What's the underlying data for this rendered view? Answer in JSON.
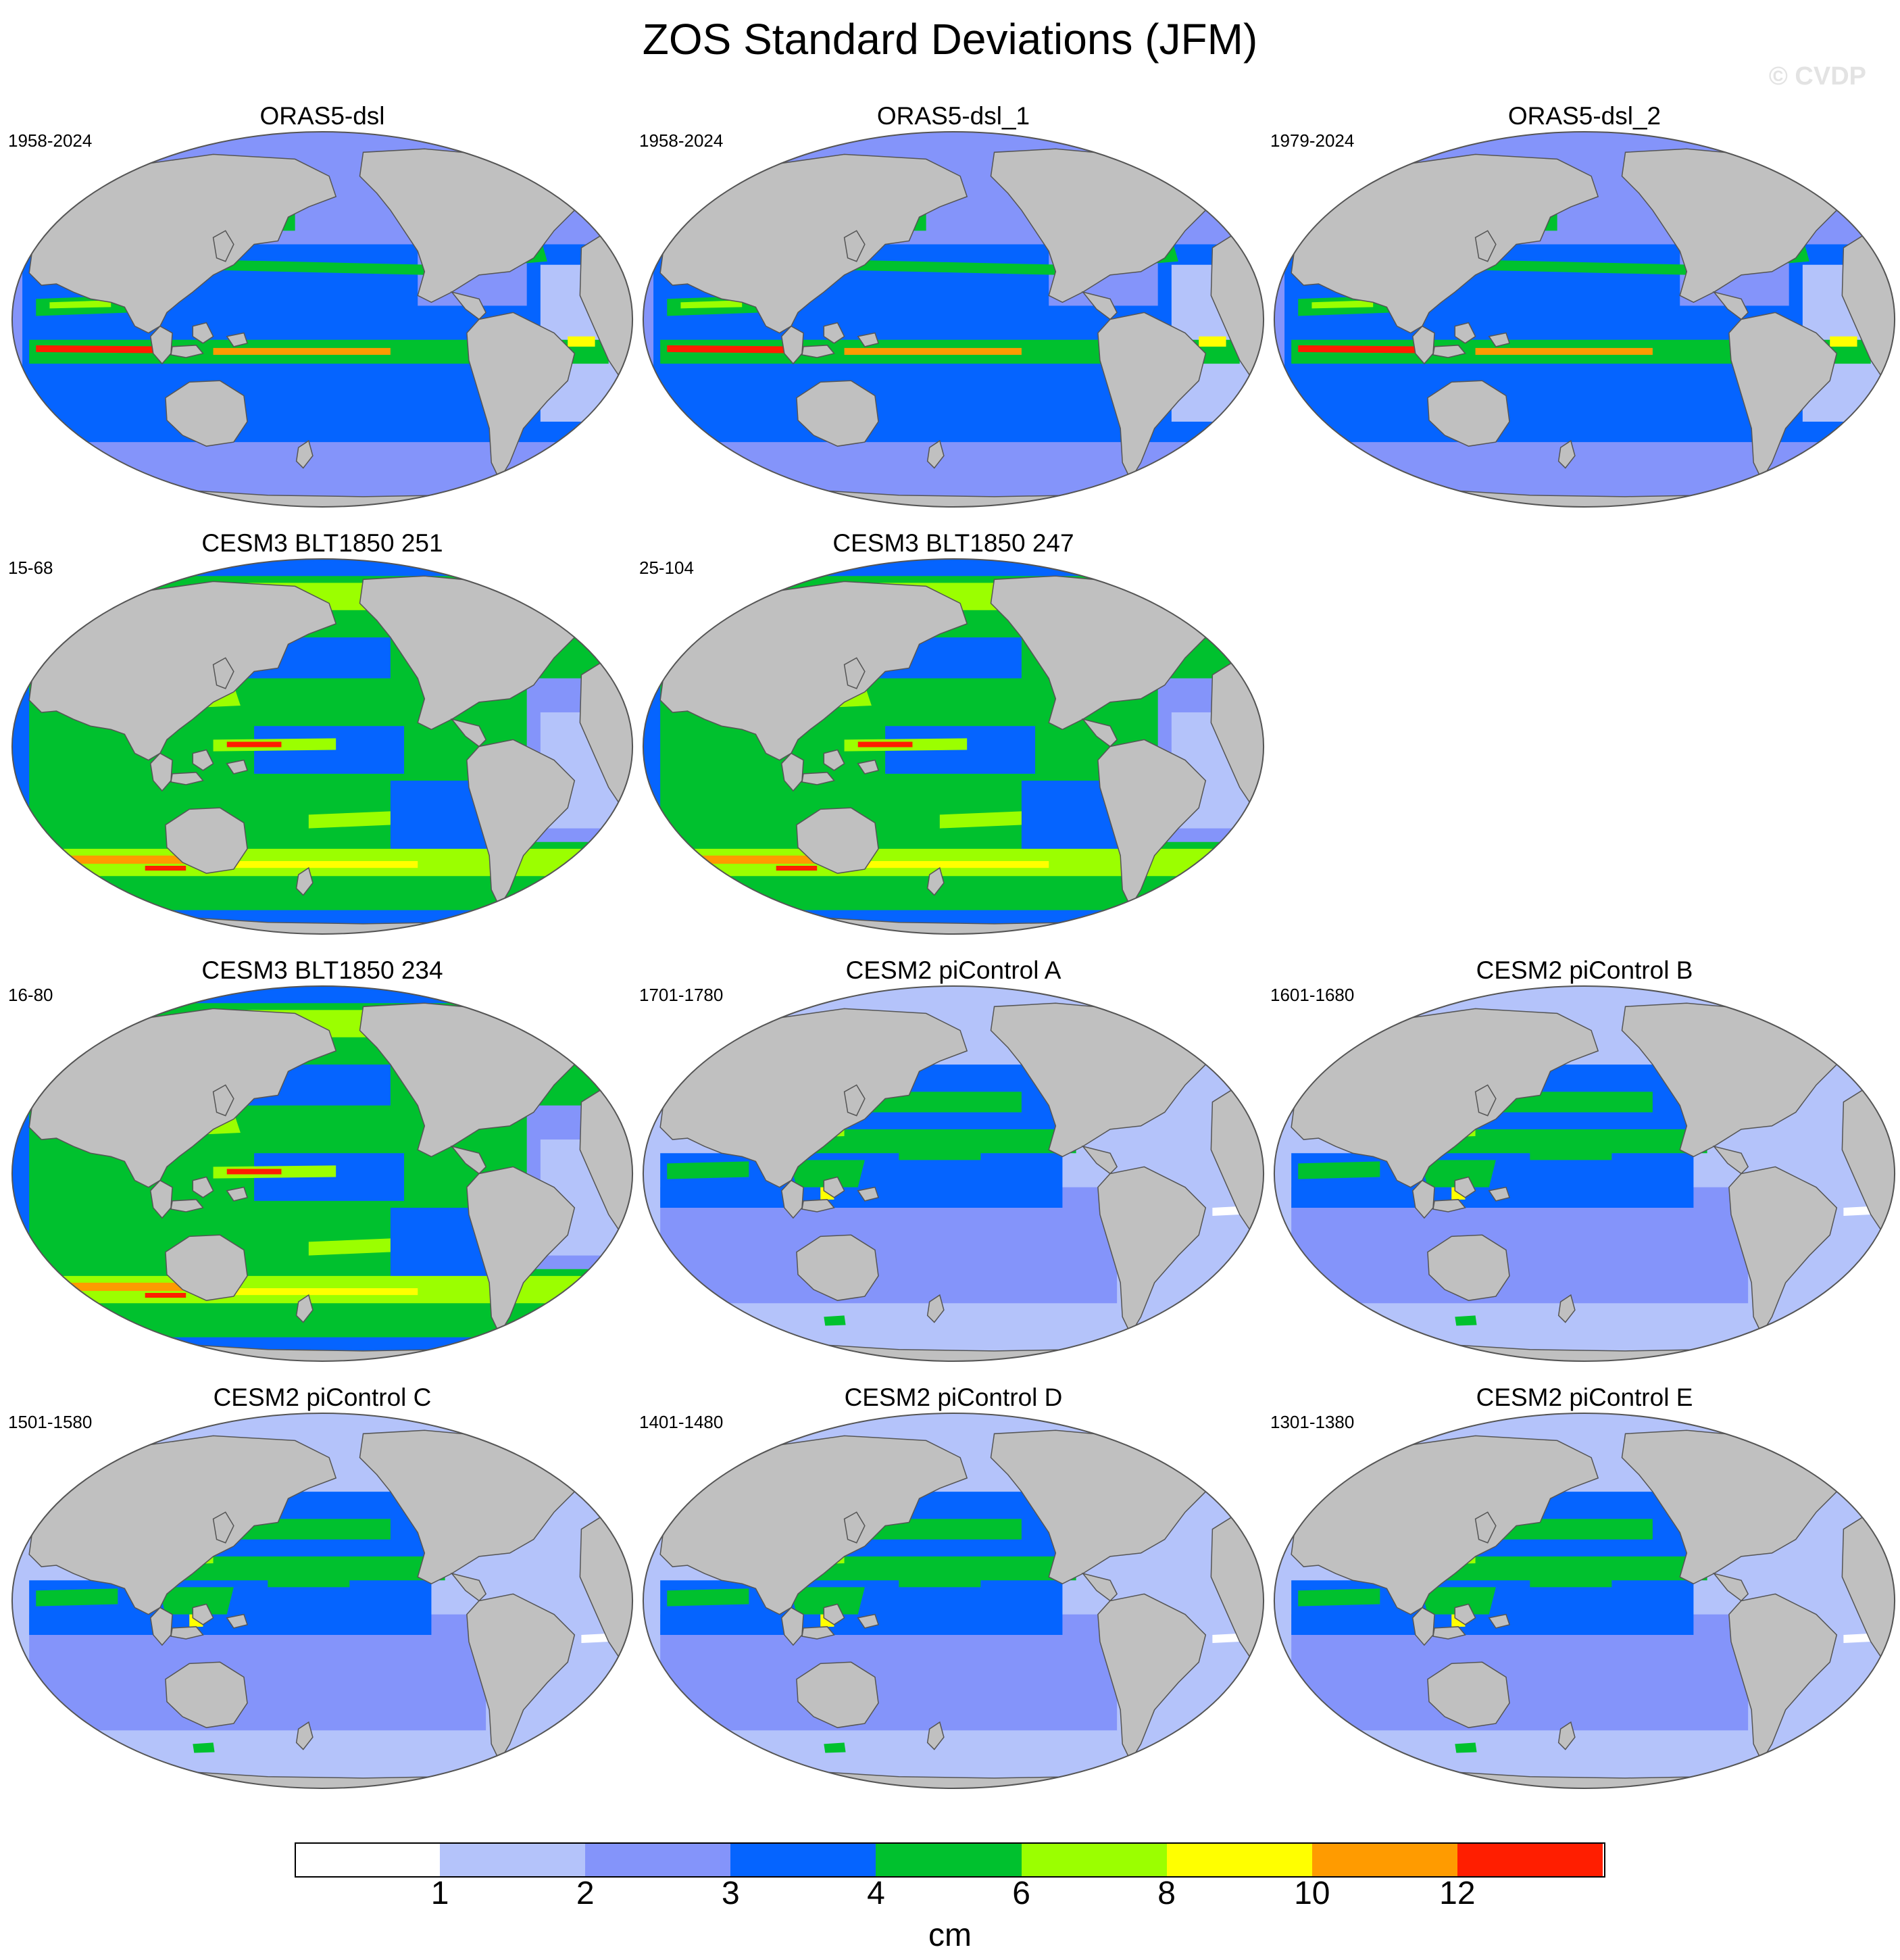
{
  "figure": {
    "title": "ZOS Standard Deviations (JFM)",
    "watermark": "© CVDP",
    "colors": {
      "land": "#c0c0c0",
      "coast": "#555555",
      "background": "#ffffff"
    }
  },
  "panels": [
    {
      "title": "ORAS5-dsl",
      "period": "1958-2024",
      "pattern": "obs"
    },
    {
      "title": "ORAS5-dsl_1",
      "period": "1958-2024",
      "pattern": "obs"
    },
    {
      "title": "ORAS5-dsl_2",
      "period": "1979-2024",
      "pattern": "obs"
    },
    {
      "title": "CESM3 BLT1850 251",
      "period": "15-68",
      "pattern": "cesm3"
    },
    {
      "title": "CESM3 BLT1850 247",
      "period": "25-104",
      "pattern": "cesm3"
    },
    {
      "title": "CESM3 BLT1850 234",
      "period": "16-80",
      "pattern": "cesm3"
    },
    {
      "title": "CESM2 piControl A",
      "period": "1701-1780",
      "pattern": "cesm2"
    },
    {
      "title": "CESM2 piControl B",
      "period": "1601-1680",
      "pattern": "cesm2"
    },
    {
      "title": "CESM2 piControl C",
      "period": "1501-1580",
      "pattern": "cesm2"
    },
    {
      "title": "CESM2 piControl D",
      "period": "1401-1480",
      "pattern": "cesm2"
    },
    {
      "title": "CESM2 piControl E",
      "period": "1301-1380",
      "pattern": "cesm2"
    }
  ],
  "colorbar": {
    "unit": "cm",
    "levels": [
      "1",
      "2",
      "3",
      "4",
      "6",
      "8",
      "10",
      "12"
    ],
    "colors": [
      "#ffffff",
      "#b4c3fa",
      "#8494fa",
      "#0564ff",
      "#00c12e",
      "#9bff00",
      "#ffff00",
      "#ff9b00",
      "#ff1e00"
    ]
  }
}
